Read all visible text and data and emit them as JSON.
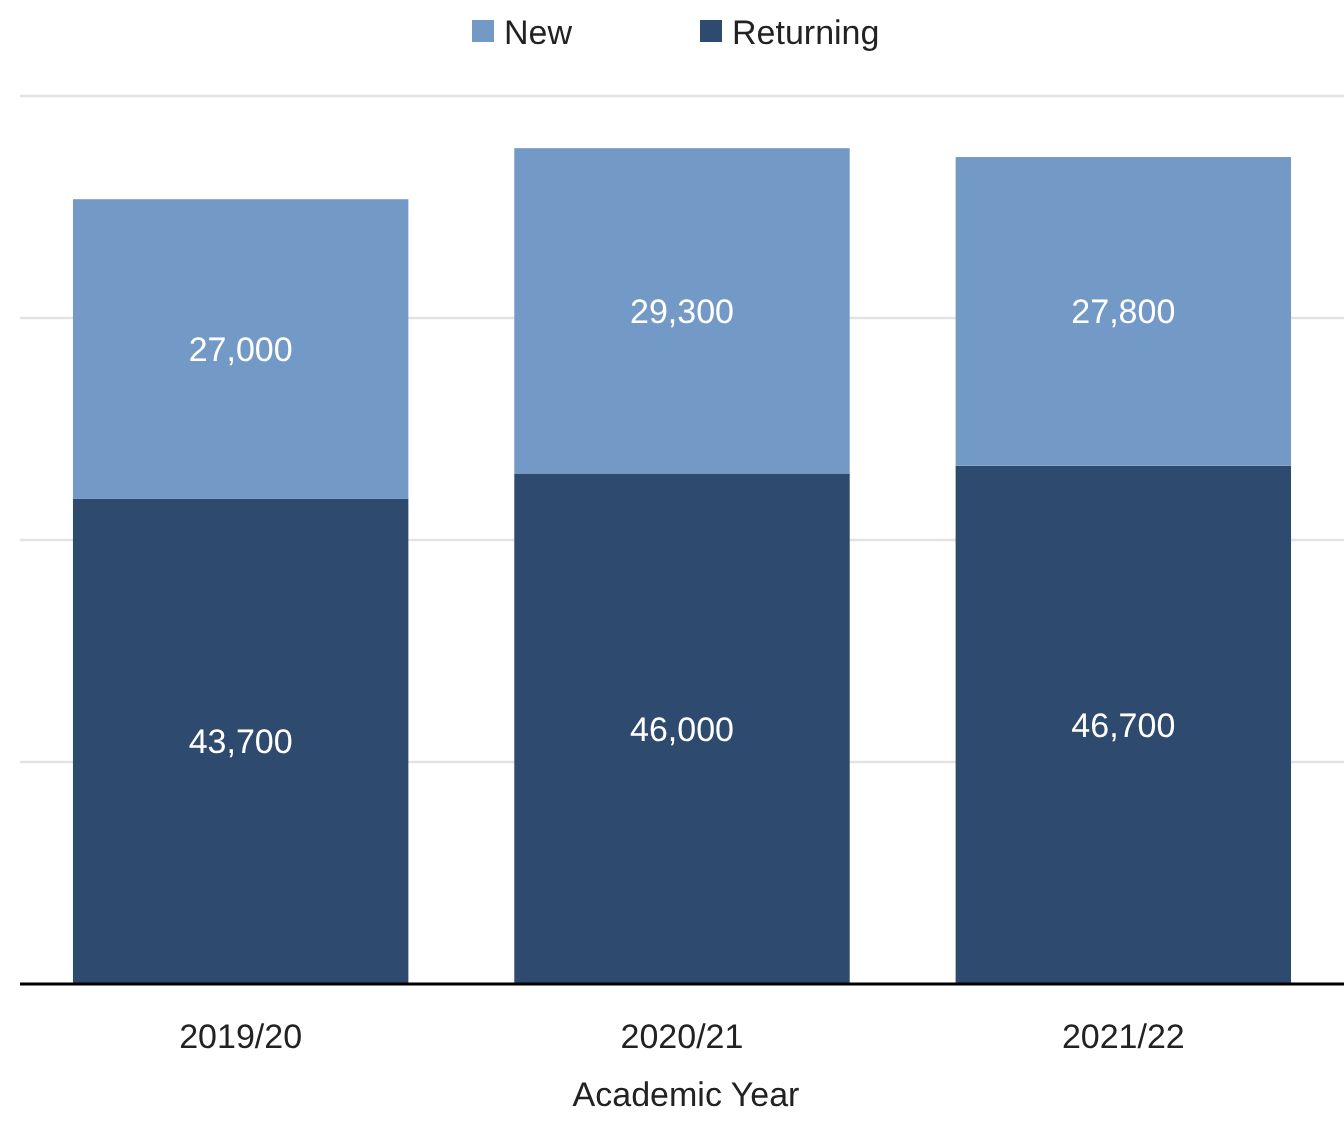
{
  "chart_data": {
    "type": "bar",
    "stacked": true,
    "xlabel": "Academic Year",
    "categories": [
      "2019/20",
      "2020/21",
      "2021/22"
    ],
    "series": [
      {
        "name": "Returning",
        "color": "#2e4a6e",
        "values": [
          43700,
          46000,
          46700
        ],
        "value_labels": [
          "43,700",
          "46,000",
          "46,700"
        ]
      },
      {
        "name": "New",
        "color": "#7399c6",
        "values": [
          27000,
          29300,
          27800
        ],
        "value_labels": [
          "27,000",
          "29,300",
          "27,800"
        ]
      }
    ],
    "grid": "y",
    "tick_labels": "x",
    "legend": "top"
  }
}
